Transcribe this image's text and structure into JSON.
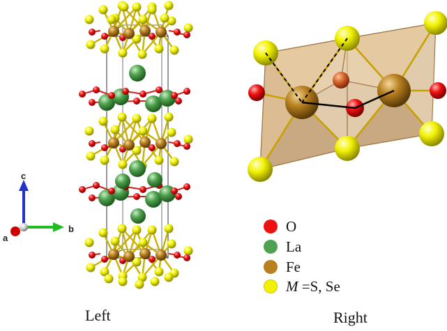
{
  "captions": {
    "left": "Left",
    "right": "Right"
  },
  "axes": {
    "a": "a",
    "b": "b",
    "c": "c"
  },
  "legend": [
    {
      "symbol": "",
      "label": "O",
      "color": "#ee1111"
    },
    {
      "symbol": "",
      "label": "La",
      "color": "#4fa24f"
    },
    {
      "symbol": "",
      "label": "Fe",
      "color": "#b8801f"
    },
    {
      "symbol": "M",
      "label": " =S, Se",
      "color": "#f2f200"
    }
  ],
  "colors": {
    "oxygen": "#ee1111",
    "lanthanum": "#4fa24f",
    "iron": "#b8801f",
    "sulfur": "#f2f200",
    "polyhedron": "#c8a06a",
    "axis_a": "#cc0000",
    "axis_b": "#22bb22",
    "axis_c": "#2233cc"
  }
}
